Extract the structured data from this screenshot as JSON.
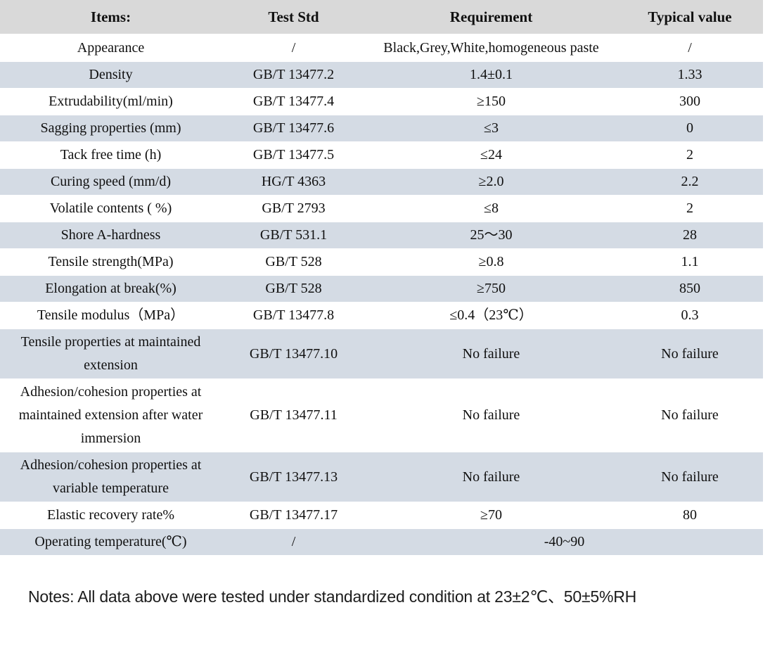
{
  "colors": {
    "header_bg": "#d9d9d9",
    "shaded_row_bg": "#d4dbe4",
    "text": "#101010"
  },
  "table": {
    "columns": [
      {
        "key": "item",
        "label": "Items:"
      },
      {
        "key": "std",
        "label": "Test Std"
      },
      {
        "key": "requirement",
        "label": "Requirement"
      },
      {
        "key": "typical",
        "label": "Typical value"
      }
    ],
    "rows": [
      {
        "item": "Appearance",
        "std": "/",
        "requirement": "Black,Grey,White,homogeneous paste",
        "typical": "/"
      },
      {
        "item": "Density",
        "std": "GB/T 13477.2",
        "requirement": "1.4±0.1",
        "typical": "1.33"
      },
      {
        "item": "Extrudability(ml/min)",
        "std": "GB/T 13477.4",
        "requirement": "≥150",
        "typical": "300"
      },
      {
        "item": "Sagging properties (mm)",
        "std": "GB/T 13477.6",
        "requirement": "≤3",
        "typical": "0"
      },
      {
        "item": "Tack free time (h)",
        "std": "GB/T 13477.5",
        "requirement": "≤24",
        "typical": "2"
      },
      {
        "item": "Curing speed (mm/d)",
        "std": "HG/T 4363",
        "requirement": "≥2.0",
        "typical": "2.2"
      },
      {
        "item": "Volatile contents ( %)",
        "std": "GB/T 2793",
        "requirement": "≤8",
        "typical": "2"
      },
      {
        "item": "Shore A-hardness",
        "std": "GB/T 531.1",
        "requirement": "25～30",
        "typical": "28"
      },
      {
        "item": "Tensile strength(MPa)",
        "std": "GB/T 528",
        "requirement": "≥0.8",
        "typical": "1.1"
      },
      {
        "item": "Elongation at break(%)",
        "std": "GB/T 528",
        "requirement": "≥750",
        "typical": "850"
      },
      {
        "item": "Tensile modulus（MPa）",
        "std": "GB/T 13477.8",
        "requirement": "≤0.4（23℃）",
        "typical": "0.3"
      },
      {
        "item": "Tensile properties at maintained extension",
        "std": "GB/T 13477.10",
        "requirement": "No failure",
        "typical": "No failure"
      },
      {
        "item": "Adhesion/cohesion properties at maintained extension after water immersion",
        "std": "GB/T 13477.11",
        "requirement": "No failure",
        "typical": "No failure"
      },
      {
        "item": "Adhesion/cohesion properties at variable temperature",
        "std": "GB/T 13477.13",
        "requirement": "No failure",
        "typical": "No failure"
      },
      {
        "item": "Elastic recovery rate%",
        "std": "GB/T 13477.17",
        "requirement": "≥70",
        "typical": "80"
      },
      {
        "item": "Operating temperature(℃)",
        "std": "/",
        "requirement": "-40~90",
        "typical": "",
        "merged": true
      }
    ]
  },
  "notes": "Notes: All data above were tested under standardized condition at 23±2℃、50±5%RH"
}
